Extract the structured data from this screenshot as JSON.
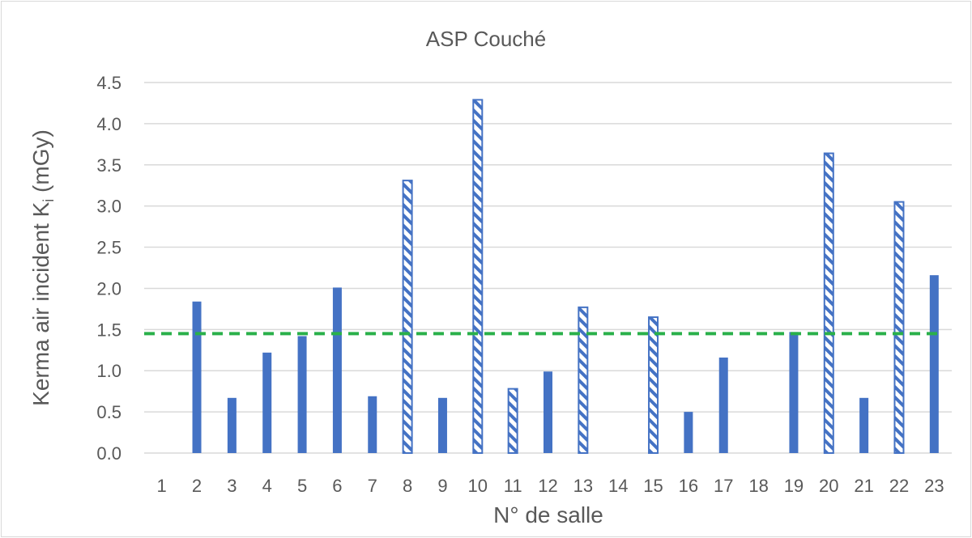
{
  "chart_data": {
    "type": "bar",
    "title": "ASP Couché",
    "xlabel": "N° de salle",
    "ylabel_main": "Kerma air incident K",
    "ylabel_sub": "i",
    "ylabel_unit": " (mGy)",
    "categories": [
      "1",
      "2",
      "3",
      "4",
      "5",
      "6",
      "7",
      "8",
      "9",
      "10",
      "11",
      "12",
      "13",
      "14",
      "15",
      "16",
      "17",
      "18",
      "19",
      "20",
      "21",
      "22",
      "23"
    ],
    "values": [
      0,
      1.84,
      0.67,
      1.22,
      1.42,
      2.01,
      0.69,
      3.31,
      0.67,
      4.29,
      0.78,
      0.99,
      1.77,
      0,
      1.65,
      0.5,
      1.16,
      0,
      1.47,
      3.64,
      0.67,
      3.05,
      2.16
    ],
    "hatched": [
      false,
      false,
      false,
      false,
      false,
      false,
      false,
      true,
      false,
      true,
      true,
      false,
      true,
      false,
      true,
      false,
      false,
      false,
      false,
      true,
      false,
      true,
      false
    ],
    "reference_line": 1.45,
    "ylim": [
      0,
      4.5
    ],
    "yticks": [
      "0.0",
      "0.5",
      "1.0",
      "1.5",
      "2.0",
      "2.5",
      "3.0",
      "3.5",
      "4.0",
      "4.5"
    ],
    "grid": true,
    "colors": {
      "bar": "#4472c4",
      "reference": "#2ab04a",
      "grid": "#d9d9d9",
      "text": "#595959"
    }
  }
}
